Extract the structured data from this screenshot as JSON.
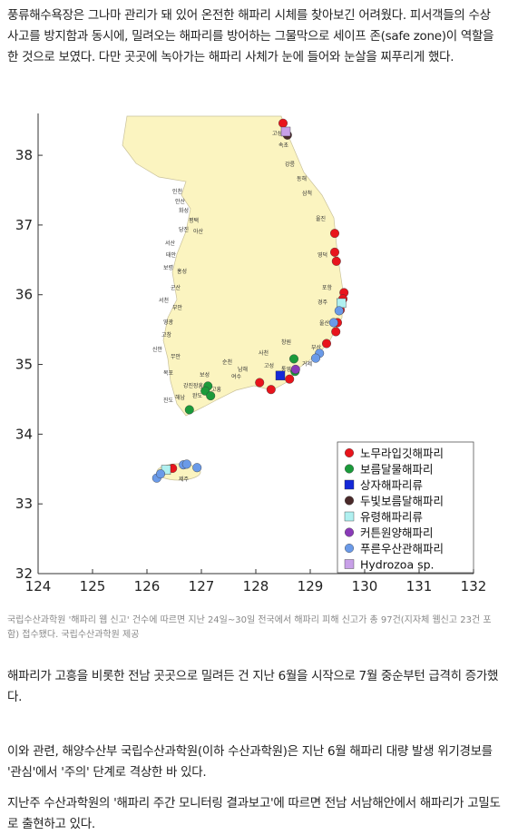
{
  "article": {
    "intro": "풍류해수욕장은 그나마 관리가 돼 있어 온전한 해파리 시체를 찾아보긴 어려웠다. 피서객들의 수상 사고를 방지함과 동시에, 밀려오는 해파리를 방어하는 그물막으로 세이프 존(safe zone)이 역할을 한 것으로 보였다. 다만 곳곳에 녹아가는 해파리 사체가 눈에 들어와 눈살을 찌푸리게 했다.",
    "caption": "국립수산과학원 '해파리 웹 신고' 건수에 따르면 지난 24일~30일 전국에서 해파리 피해 신고가 총 97건(지자체 웹신고 23건 포함) 접수됐다. 국립수산과학원 제공",
    "paragraphs": [
      "해파리가 고흥을 비롯한 전남 곳곳으로 밀려든 건 지난 6월을 시작으로 7월 중순부턴 급격히 증가했다.",
      "이와 관련, 해양수산부 국립수산과학원(이하 수산과학원)은 지난 6월 해파리 대량 발생 위기경보를 '관심'에서 '주의' 단계로 격상한 바 있다.",
      "지난주 수산과학원의 '해파리 주간 모니터링 결과보고'에 따르면 전남 서남해안에서 해파리가 고밀도로 출현하고 있다."
    ]
  },
  "chart_data": {
    "type": "scatter",
    "xlim": [
      124,
      132
    ],
    "ylim": [
      32,
      38.6
    ],
    "xticks": [
      124,
      125,
      126,
      127,
      128,
      129,
      130,
      131,
      132
    ],
    "yticks": [
      32,
      33,
      34,
      35,
      36,
      37,
      38
    ],
    "place_names": [
      "고성",
      "속초",
      "강릉",
      "동해",
      "삼척",
      "울진",
      "영덕",
      "포항",
      "경주",
      "울산",
      "부산",
      "창원",
      "거제",
      "통영",
      "고성",
      "사천",
      "남해",
      "여수",
      "순천",
      "고흥",
      "보성",
      "장흥",
      "강진",
      "완도",
      "해남",
      "진도",
      "목포",
      "무안",
      "신안",
      "영광",
      "고창",
      "부안",
      "군산",
      "서천",
      "보령",
      "홍성",
      "태안",
      "서산",
      "당진",
      "아산",
      "평택",
      "화성",
      "안산",
      "인천",
      "제주"
    ],
    "series": [
      {
        "name": "노무라입깃해파리",
        "color": "#e8141c",
        "marker": "circle",
        "x": [
          128.5,
          129.45,
          129.45,
          129.48,
          129.62,
          129.6,
          129.55,
          129.5,
          129.47,
          129.3,
          128.62,
          128.28,
          128.07,
          126.47
        ],
        "y": [
          38.46,
          36.88,
          36.61,
          36.48,
          36.03,
          35.94,
          35.78,
          35.6,
          35.47,
          35.3,
          34.79,
          34.64,
          34.74,
          33.51
        ]
      },
      {
        "name": "보름달물해파리",
        "color": "#1a9a3a",
        "marker": "circle",
        "x": [
          128.7,
          128.72,
          127.12,
          127.07,
          127.17,
          126.78
        ],
        "y": [
          35.08,
          34.9,
          34.69,
          34.62,
          34.55,
          34.35
        ]
      },
      {
        "name": "상자해파리류",
        "color": "#1428d8",
        "marker": "square",
        "x": [
          128.45
        ],
        "y": [
          34.84
        ]
      },
      {
        "name": "두빛보름달해파리",
        "color": "#4a2a2a",
        "marker": "circle",
        "x": [
          128.58
        ],
        "y": [
          38.29
        ]
      },
      {
        "name": "유령해파리류",
        "color": "#b0f0f0",
        "marker": "square",
        "x": [
          129.57,
          126.35
        ],
        "y": [
          35.88,
          33.49
        ]
      },
      {
        "name": "커튼원양해파리",
        "color": "#8a3ab8",
        "marker": "circle",
        "x": [
          128.73
        ],
        "y": [
          34.93
        ]
      },
      {
        "name": "푸른우산관해파리",
        "color": "#6a9ae8",
        "marker": "circle",
        "x": [
          129.53,
          129.43,
          129.17,
          129.1,
          126.18,
          126.25,
          126.67,
          126.73,
          126.92
        ],
        "y": [
          35.77,
          35.6,
          35.16,
          35.09,
          33.37,
          33.43,
          33.56,
          33.57,
          33.52
        ]
      },
      {
        "name": "Hydrozoa sp.",
        "color": "#c8a0e8",
        "marker": "square",
        "x": [
          128.55
        ],
        "y": [
          38.34
        ]
      }
    ]
  }
}
